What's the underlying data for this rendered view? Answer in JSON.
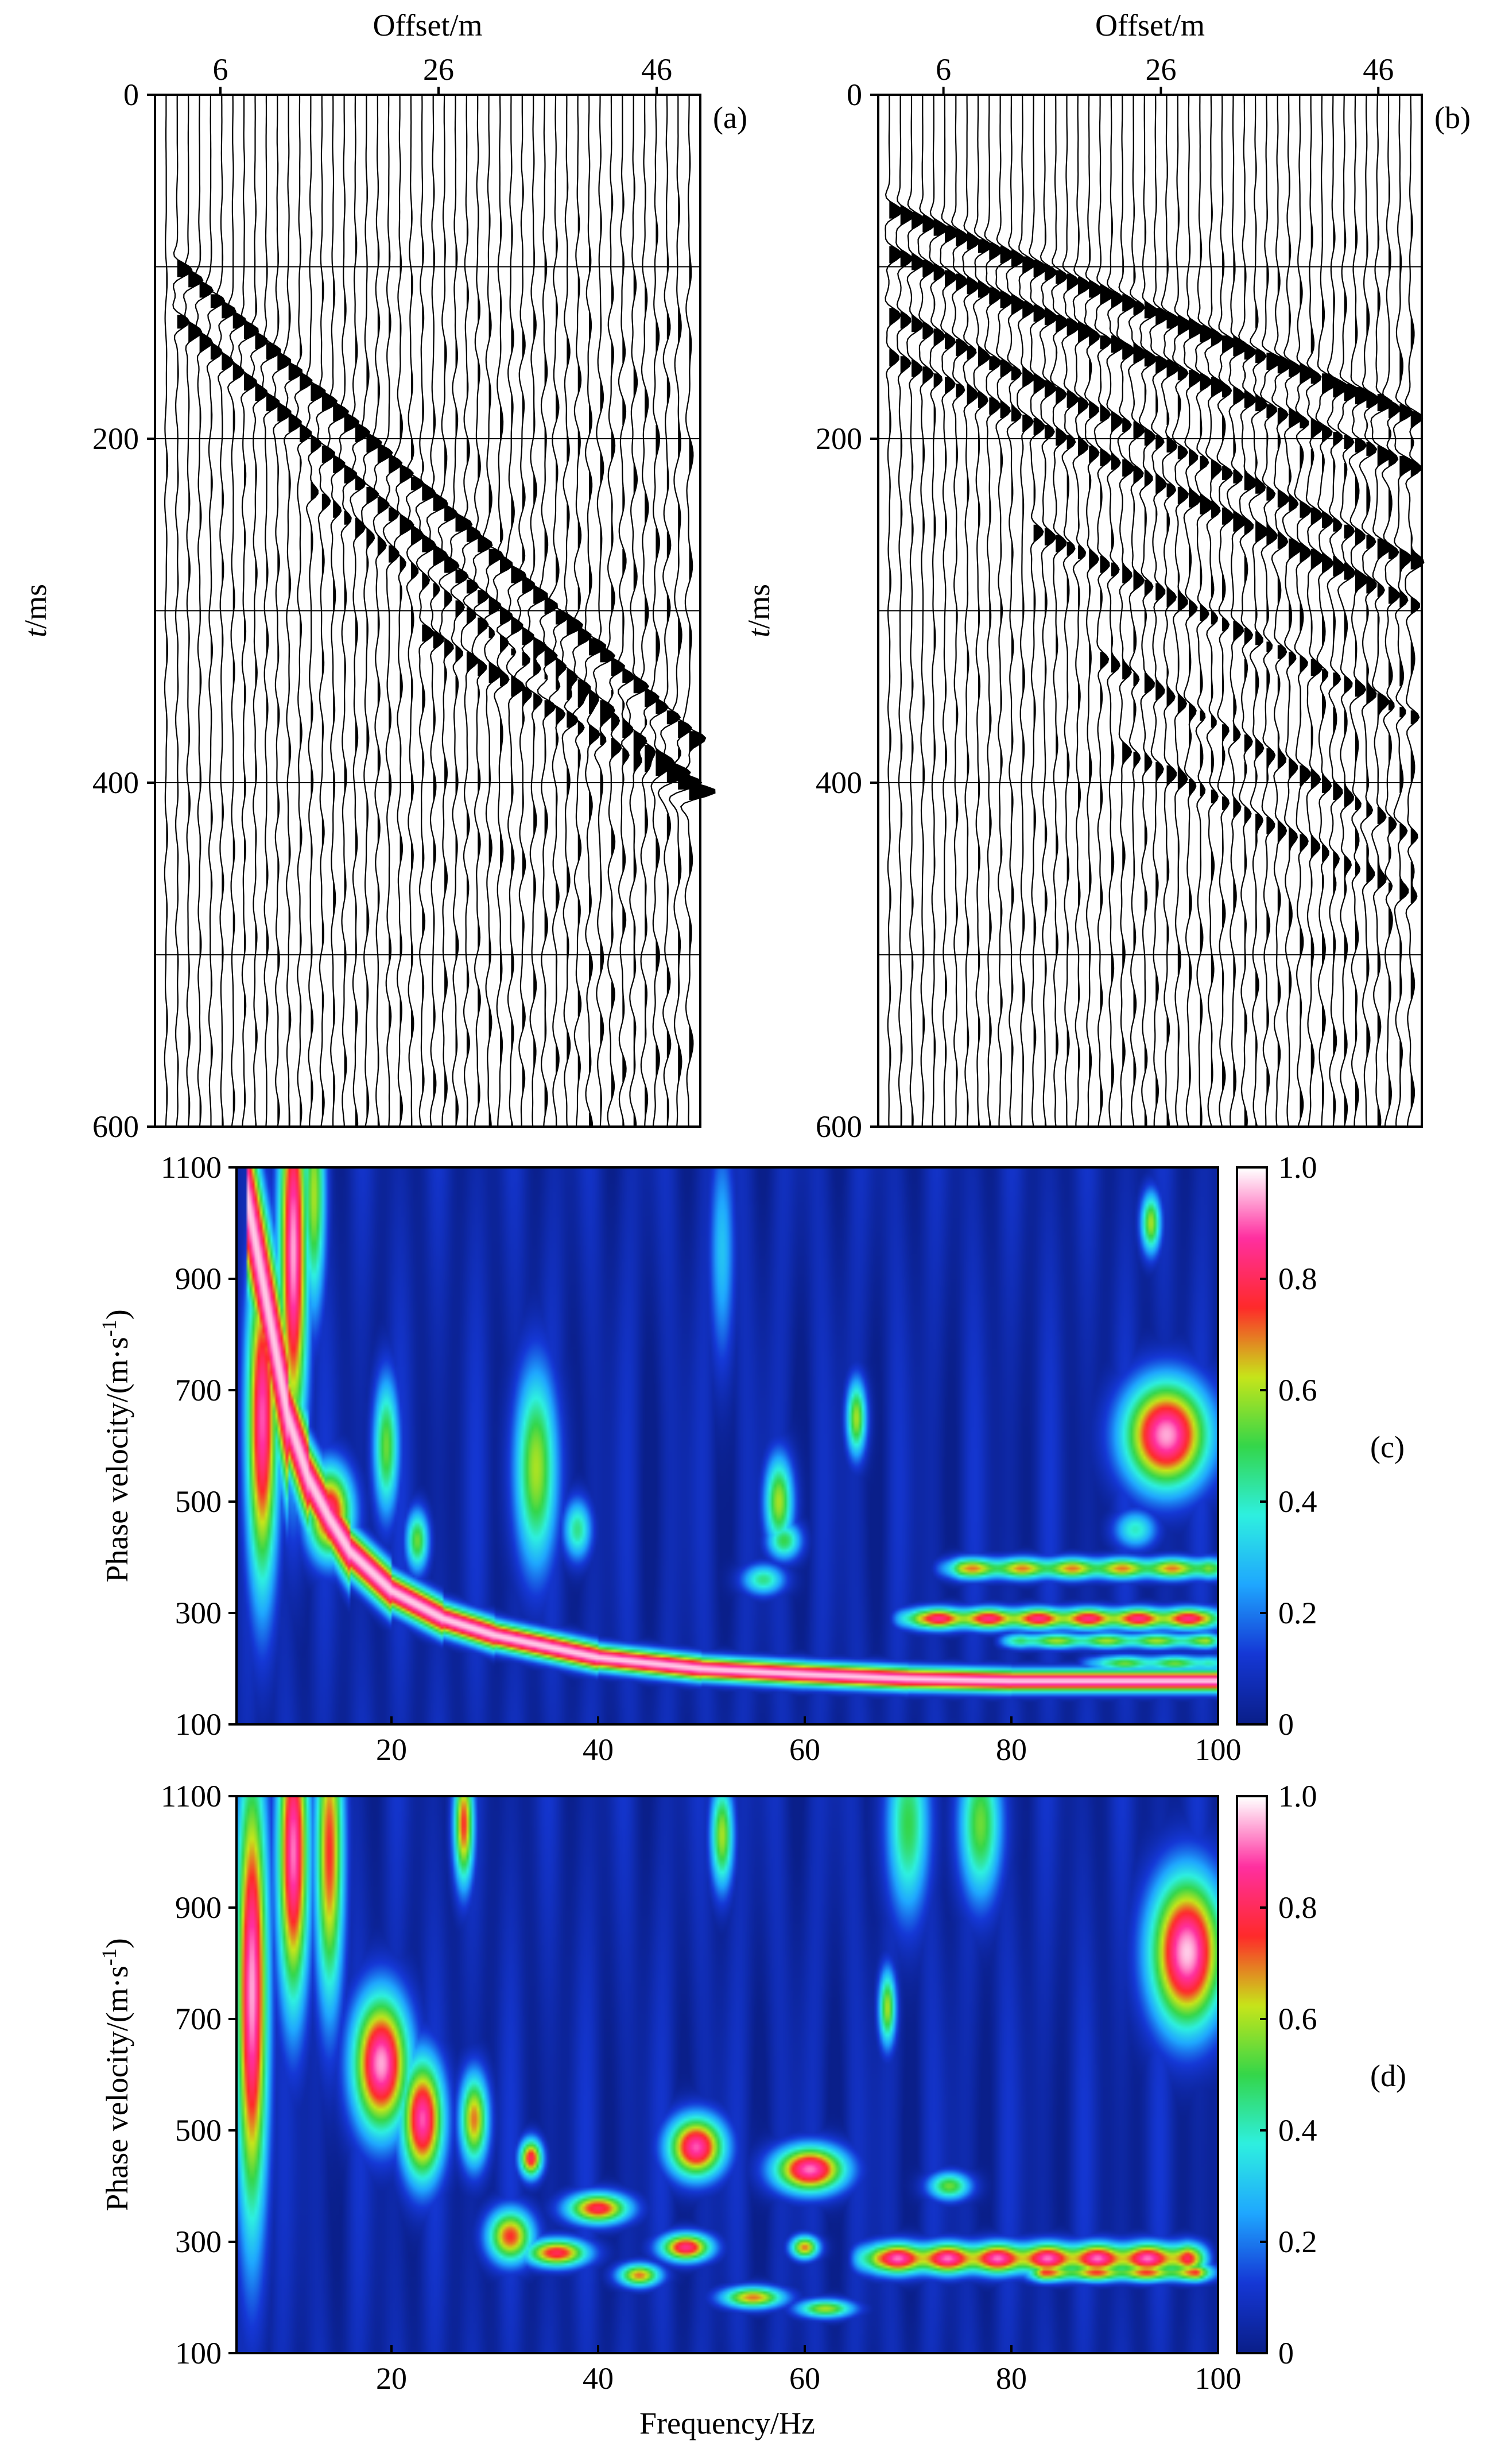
{
  "panels": {
    "a": {
      "label": "(a)"
    },
    "b": {
      "label": "(b)"
    },
    "c": {
      "label": "(c)"
    },
    "d": {
      "label": "(d)"
    }
  },
  "chart_data": [
    {
      "id": "a",
      "type": "seismic-wiggle",
      "title": "",
      "xlabel": "Offset/m",
      "ylabel_italic": "t",
      "ylabel_unit": "/ms",
      "x_ticks": [
        6,
        26,
        46
      ],
      "y_ticks": [
        0,
        200,
        400,
        600
      ],
      "xlim": [
        0,
        50
      ],
      "ylim": [
        600,
        0
      ],
      "x_axis_position": "top",
      "gridlines_ms": [
        100,
        200,
        300,
        400,
        500
      ],
      "trace_count": 48,
      "events": [
        {
          "t0_ms": 90,
          "slowness_ms_per_m": 5.8,
          "start_offset_m": 2,
          "amplitude": 1.4
        },
        {
          "t0_ms": 120,
          "slowness_ms_per_m": 5.8,
          "start_offset_m": 2,
          "amplitude": 1.2
        },
        {
          "t0_ms": 160,
          "slowness_ms_per_m": 5.0,
          "start_offset_m": 14,
          "amplitude": 0.8
        },
        {
          "t0_ms": 220,
          "slowness_ms_per_m": 3.8,
          "start_offset_m": 24,
          "amplitude": 1.0
        }
      ]
    },
    {
      "id": "b",
      "type": "seismic-wiggle",
      "title": "",
      "xlabel": "Offset/m",
      "ylabel_italic": "t",
      "ylabel_unit": "/ms",
      "x_ticks": [
        6,
        26,
        46
      ],
      "y_ticks": [
        0,
        200,
        400,
        600
      ],
      "xlim": [
        0,
        50
      ],
      "ylim": [
        600,
        0
      ],
      "x_axis_position": "top",
      "gridlines_ms": [
        100,
        200,
        300,
        400,
        500
      ],
      "trace_count": 48,
      "events": [
        {
          "t0_ms": 65,
          "slowness_ms_per_m": 2.5,
          "start_offset_m": 0,
          "amplitude": 1.3
        },
        {
          "t0_ms": 90,
          "slowness_ms_per_m": 2.6,
          "start_offset_m": 0,
          "amplitude": 1.2
        },
        {
          "t0_ms": 125,
          "slowness_ms_per_m": 3.0,
          "start_offset_m": 0,
          "amplitude": 1.1
        },
        {
          "t0_ms": 150,
          "slowness_ms_per_m": 3.0,
          "start_offset_m": 0,
          "amplitude": 1.0
        },
        {
          "t0_ms": 210,
          "slowness_ms_per_m": 3.1,
          "start_offset_m": 14,
          "amplitude": 0.9
        },
        {
          "t0_ms": 255,
          "slowness_ms_per_m": 3.6,
          "start_offset_m": 20,
          "amplitude": 0.8
        },
        {
          "t0_ms": 310,
          "slowness_ms_per_m": 3.2,
          "start_offset_m": 22,
          "amplitude": 0.7
        }
      ]
    },
    {
      "id": "c",
      "type": "heatmap",
      "title": "",
      "xlabel": "",
      "ylabel": "Phase velocity/(m·s",
      "ylabel_sup": "-1",
      "ylabel_tail": ")",
      "x_ticks": [
        20,
        40,
        60,
        80,
        100
      ],
      "y_ticks": [
        100,
        300,
        500,
        700,
        900,
        1100
      ],
      "xlim": [
        5,
        100
      ],
      "ylim": [
        100,
        1100
      ],
      "colorbar": {
        "min": 0,
        "max": 1,
        "ticks": [
          "1.0",
          "0.8",
          "0.6",
          "0.4",
          "0.2",
          "0"
        ],
        "tick_values": [
          1.0,
          0.8,
          0.6,
          0.4,
          0.2,
          0
        ]
      },
      "colormap": [
        "#0a1f8a",
        "#1538d6",
        "#1fa7ff",
        "#2ef0e0",
        "#34d64a",
        "#c7e51a",
        "#ff2a2a",
        "#ff2fa0",
        "#ffffff"
      ],
      "background_value": 0.05,
      "features": [
        {
          "kind": "curve",
          "f": [
            6,
            8,
            10,
            12,
            14,
            16,
            20,
            25,
            30,
            40,
            50,
            60,
            70,
            80,
            90,
            100
          ],
          "v": [
            1050,
            850,
            650,
            540,
            470,
            410,
            340,
            290,
            260,
            220,
            200,
            190,
            182,
            178,
            178,
            178
          ],
          "amplitude": 0.97,
          "width_f": 1.0,
          "width_v": 14
        },
        {
          "kind": "blob",
          "f": 7.5,
          "v": 650,
          "amplitude": 0.9,
          "sf": 1.1,
          "sv": 220
        },
        {
          "kind": "blob",
          "f": 10.5,
          "v": 950,
          "amplitude": 0.95,
          "sf": 1.0,
          "sv": 260
        },
        {
          "kind": "blob",
          "f": 12.5,
          "v": 1050,
          "amplitude": 0.6,
          "sf": 0.8,
          "sv": 150
        },
        {
          "kind": "blob",
          "f": 14,
          "v": 480,
          "amplitude": 0.85,
          "sf": 1.6,
          "sv": 60
        },
        {
          "kind": "blob",
          "f": 19.5,
          "v": 600,
          "amplitude": 0.55,
          "sf": 0.9,
          "sv": 90
        },
        {
          "kind": "blob",
          "f": 22.5,
          "v": 430,
          "amplitude": 0.55,
          "sf": 0.8,
          "sv": 40
        },
        {
          "kind": "blob",
          "f": 34,
          "v": 560,
          "amplitude": 0.6,
          "sf": 1.5,
          "sv": 130
        },
        {
          "kind": "blob",
          "f": 38,
          "v": 450,
          "amplitude": 0.45,
          "sf": 1.0,
          "sv": 40
        },
        {
          "kind": "blob",
          "f": 57.5,
          "v": 500,
          "amplitude": 0.6,
          "sf": 1.0,
          "sv": 60
        },
        {
          "kind": "blob",
          "f": 58,
          "v": 430,
          "amplitude": 0.5,
          "sf": 1.2,
          "sv": 25
        },
        {
          "kind": "blob",
          "f": 65,
          "v": 650,
          "amplitude": 0.6,
          "sf": 0.7,
          "sv": 50
        },
        {
          "kind": "blob",
          "f": 56,
          "v": 360,
          "amplitude": 0.45,
          "sf": 1.5,
          "sv": 20
        },
        {
          "kind": "blob",
          "f": 52,
          "v": 950,
          "amplitude": 0.3,
          "sf": 0.9,
          "sv": 150
        },
        {
          "kind": "blob",
          "f": 95,
          "v": 620,
          "amplitude": 0.95,
          "sf": 3.0,
          "sv": 70
        },
        {
          "kind": "blob",
          "f": 93.5,
          "v": 1000,
          "amplitude": 0.6,
          "sf": 0.7,
          "sv": 40
        },
        {
          "kind": "blob",
          "f": 92,
          "v": 450,
          "amplitude": 0.4,
          "sf": 1.5,
          "sv": 25
        },
        {
          "kind": "band",
          "f0": 74,
          "f1": 100,
          "v": 380,
          "amplitude": 0.7,
          "sv": 14
        },
        {
          "kind": "band",
          "f0": 70,
          "f1": 100,
          "v": 290,
          "amplitude": 0.85,
          "sv": 14
        },
        {
          "kind": "band",
          "f0": 80,
          "f1": 100,
          "v": 250,
          "amplitude": 0.6,
          "sv": 10
        },
        {
          "kind": "band",
          "f0": 88,
          "f1": 100,
          "v": 210,
          "amplitude": 0.55,
          "sv": 10
        }
      ]
    },
    {
      "id": "d",
      "type": "heatmap",
      "title": "",
      "xlabel": "Frequency/Hz",
      "ylabel": "Phase velocity/(m·s",
      "ylabel_sup": "-1",
      "ylabel_tail": ")",
      "x_ticks": [
        20,
        40,
        60,
        80,
        100
      ],
      "y_ticks": [
        100,
        300,
        500,
        700,
        900,
        1100
      ],
      "xlim": [
        5,
        100
      ],
      "ylim": [
        100,
        1100
      ],
      "colorbar": {
        "min": 0,
        "max": 1,
        "ticks": [
          "1.0",
          "0.8",
          "0.6",
          "0.4",
          "0.2",
          "0"
        ],
        "tick_values": [
          1.0,
          0.8,
          0.6,
          0.4,
          0.2,
          0
        ]
      },
      "colormap": [
        "#0a1f8a",
        "#1538d6",
        "#1fa7ff",
        "#2ef0e0",
        "#34d64a",
        "#c7e51a",
        "#ff2a2a",
        "#ff2fa0",
        "#ffffff"
      ],
      "background_value": 0.05,
      "features": [
        {
          "kind": "blob",
          "f": 6.5,
          "v": 750,
          "amplitude": 0.95,
          "sf": 1.1,
          "sv": 300
        },
        {
          "kind": "blob",
          "f": 10.5,
          "v": 1000,
          "amplitude": 0.92,
          "sf": 1.1,
          "sv": 200
        },
        {
          "kind": "blob",
          "f": 14,
          "v": 1000,
          "amplitude": 0.75,
          "sf": 1.0,
          "sv": 200
        },
        {
          "kind": "blob",
          "f": 19,
          "v": 620,
          "amplitude": 0.95,
          "sf": 2.0,
          "sv": 90
        },
        {
          "kind": "blob",
          "f": 23,
          "v": 520,
          "amplitude": 0.9,
          "sf": 1.5,
          "sv": 80
        },
        {
          "kind": "blob",
          "f": 27,
          "v": 1050,
          "amplitude": 0.75,
          "sf": 0.7,
          "sv": 80
        },
        {
          "kind": "blob",
          "f": 28,
          "v": 520,
          "amplitude": 0.7,
          "sf": 1.0,
          "sv": 60
        },
        {
          "kind": "blob",
          "f": 33.5,
          "v": 450,
          "amplitude": 0.8,
          "sf": 0.8,
          "sv": 25
        },
        {
          "kind": "blob",
          "f": 31.5,
          "v": 310,
          "amplitude": 0.75,
          "sf": 1.6,
          "sv": 35
        },
        {
          "kind": "blob",
          "f": 36,
          "v": 280,
          "amplitude": 0.8,
          "sf": 2.2,
          "sv": 18
        },
        {
          "kind": "blob",
          "f": 40,
          "v": 360,
          "amplitude": 0.8,
          "sf": 2.2,
          "sv": 20
        },
        {
          "kind": "blob",
          "f": 44,
          "v": 240,
          "amplitude": 0.7,
          "sf": 1.5,
          "sv": 15
        },
        {
          "kind": "blob",
          "f": 48.5,
          "v": 290,
          "amplitude": 0.85,
          "sf": 1.8,
          "sv": 18
        },
        {
          "kind": "blob",
          "f": 49.5,
          "v": 470,
          "amplitude": 0.9,
          "sf": 2.0,
          "sv": 40
        },
        {
          "kind": "blob",
          "f": 52,
          "v": 1030,
          "amplitude": 0.6,
          "sf": 0.8,
          "sv": 70
        },
        {
          "kind": "blob",
          "f": 55,
          "v": 200,
          "amplitude": 0.7,
          "sf": 2.2,
          "sv": 14
        },
        {
          "kind": "blob",
          "f": 60.5,
          "v": 430,
          "amplitude": 0.92,
          "sf": 2.5,
          "sv": 30
        },
        {
          "kind": "blob",
          "f": 60,
          "v": 290,
          "amplitude": 0.7,
          "sf": 1.0,
          "sv": 15
        },
        {
          "kind": "blob",
          "f": 62,
          "v": 180,
          "amplitude": 0.6,
          "sf": 2.0,
          "sv": 12
        },
        {
          "kind": "blob",
          "f": 68,
          "v": 720,
          "amplitude": 0.6,
          "sf": 0.6,
          "sv": 50
        },
        {
          "kind": "blob",
          "f": 70,
          "v": 1050,
          "amplitude": 0.5,
          "sf": 1.5,
          "sv": 120
        },
        {
          "kind": "blob",
          "f": 77,
          "v": 1050,
          "amplitude": 0.55,
          "sf": 1.5,
          "sv": 100
        },
        {
          "kind": "blob",
          "f": 74,
          "v": 400,
          "amplitude": 0.55,
          "sf": 1.5,
          "sv": 18
        },
        {
          "kind": "blob",
          "f": 97,
          "v": 820,
          "amplitude": 0.97,
          "sf": 2.6,
          "sv": 100
        },
        {
          "kind": "band",
          "f0": 66,
          "f1": 98,
          "v": 270,
          "amplitude": 0.92,
          "sv": 20
        },
        {
          "kind": "band",
          "f0": 82,
          "f1": 99,
          "v": 245,
          "amplitude": 0.75,
          "sv": 12
        }
      ]
    }
  ]
}
